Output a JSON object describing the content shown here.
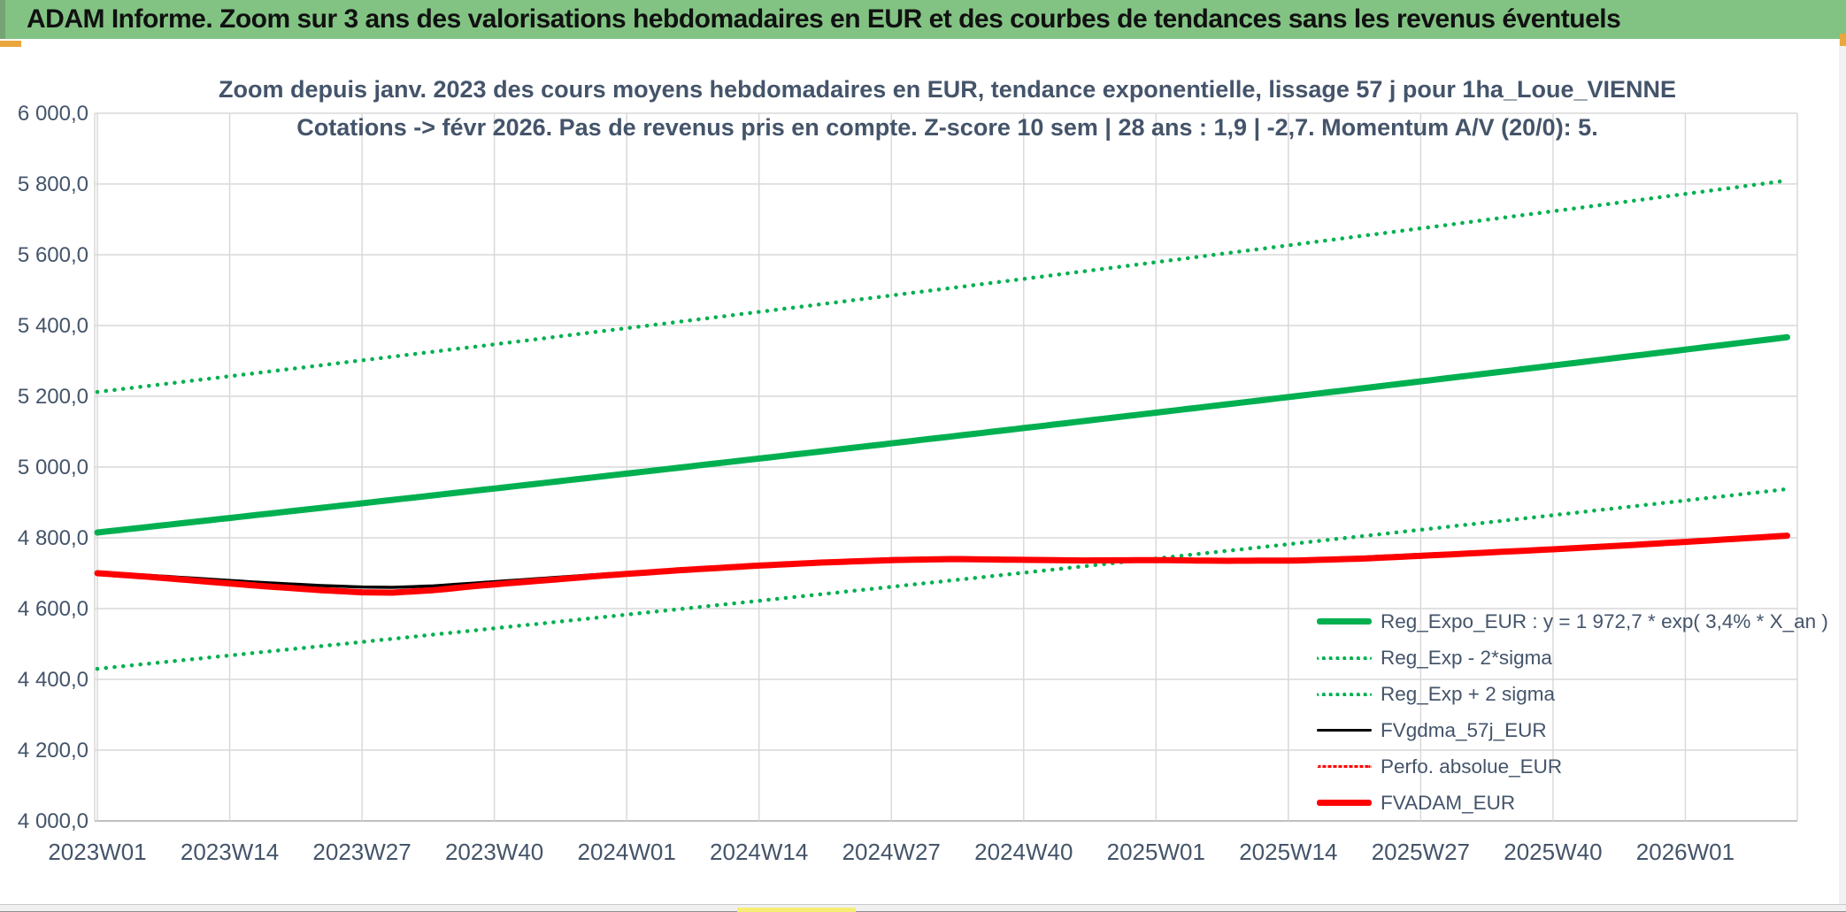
{
  "header": {
    "title": "ADAM Informe. Zoom sur 3 ans des valorisations hebdomadaires en EUR et des courbes de tendances sans les revenus éventuels"
  },
  "chart_data": {
    "type": "line",
    "title_line1": "Zoom depuis janv. 2023 des cours moyens hebdomadaires en EUR, tendance exponentielle, lissage 57 j pour 1ha_Loue_VIENNE",
    "title_line2": "Cotations -> févr 2026. Pas de revenus pris en compte. Z-score 10 sem | 28 ans : 1,9 | -2,7. Momentum A/V (20/0): 5.",
    "x_axis": {
      "tick_labels": [
        "2023W01",
        "2023W14",
        "2023W27",
        "2023W40",
        "2024W01",
        "2024W14",
        "2024W27",
        "2024W40",
        "2025W01",
        "2025W14",
        "2025W27",
        "2025W40",
        "2026W01"
      ],
      "tick_week_interval": 13,
      "weeks_last": 166,
      "weeks_right_edge": 167
    },
    "y_axis": {
      "min": 4000,
      "max": 6000,
      "ticks": [
        {
          "value": 6000,
          "label": "6 000,0"
        },
        {
          "value": 5800,
          "label": "5 800,0"
        },
        {
          "value": 5600,
          "label": "5 600,0"
        },
        {
          "value": 5400,
          "label": "5 400,0"
        },
        {
          "value": 5200,
          "label": "5 200,0"
        },
        {
          "value": 5000,
          "label": "5 000,0"
        },
        {
          "value": 4800,
          "label": "4 800,0"
        },
        {
          "value": 4600,
          "label": "4 600,0"
        },
        {
          "value": 4400,
          "label": "4 400,0"
        },
        {
          "value": 4200,
          "label": "4 200,0"
        },
        {
          "value": 4000,
          "label": "4 000,0"
        }
      ]
    },
    "grid": true,
    "legend_position": "inside-right-bottom",
    "series": [
      {
        "name": "Reg_Expo_EUR : y = 1 972,7 * exp( 3,4% *  X_an )",
        "color": "#00B050",
        "style": "solid",
        "width": 7,
        "z": 3,
        "model": "exp",
        "base_eur": 4815,
        "annual_rate": 0.034,
        "band_factor": 1
      },
      {
        "name": "Reg_Exp - 2*sigma",
        "color": "#00B050",
        "style": "dot",
        "width": 4.5,
        "z": 1,
        "model": "exp",
        "base_eur": 4815,
        "annual_rate": 0.034,
        "band_factor": 0.92
      },
      {
        "name": "Reg_Exp + 2 sigma",
        "color": "#00B050",
        "style": "dot",
        "width": 4.5,
        "z": 2,
        "model": "exp",
        "base_eur": 4815,
        "annual_rate": 0.034,
        "band_factor": 1.0825
      },
      {
        "name": "FVgdma_57j_EUR",
        "color": "#000000",
        "style": "solid",
        "width": 3.5,
        "z": 4,
        "keypoints": [
          [
            0,
            4701
          ],
          [
            5,
            4694
          ],
          [
            10,
            4685
          ],
          [
            16,
            4674
          ],
          [
            22,
            4665
          ],
          [
            26,
            4661
          ],
          [
            29,
            4660
          ],
          [
            33,
            4664
          ],
          [
            38,
            4674
          ],
          [
            44,
            4686
          ],
          [
            50,
            4698
          ],
          [
            57,
            4710
          ],
          [
            64,
            4722
          ],
          [
            71,
            4733
          ],
          [
            78,
            4741
          ],
          [
            84,
            4744
          ],
          [
            90,
            4742
          ],
          [
            97,
            4739
          ],
          [
            104,
            4738
          ],
          [
            111,
            4737
          ],
          [
            118,
            4739
          ],
          [
            124,
            4745
          ],
          [
            130,
            4753
          ],
          [
            137,
            4762
          ],
          [
            144,
            4771
          ],
          [
            151,
            4781
          ],
          [
            158,
            4791
          ],
          [
            162,
            4797
          ],
          [
            166,
            4803
          ]
        ]
      },
      {
        "name": "Perfo. absolue_EUR",
        "color": "#FF0000",
        "style": "dot",
        "width": 3,
        "z": 5,
        "keypoints": [
          [
            0,
            4700
          ],
          [
            5,
            4690
          ],
          [
            10,
            4678
          ],
          [
            16,
            4664
          ],
          [
            22,
            4652
          ],
          [
            26,
            4646
          ],
          [
            29,
            4645
          ],
          [
            33,
            4652
          ],
          [
            38,
            4666
          ],
          [
            44,
            4680
          ],
          [
            50,
            4694
          ],
          [
            57,
            4708
          ],
          [
            64,
            4720
          ],
          [
            71,
            4730
          ],
          [
            78,
            4737
          ],
          [
            84,
            4740
          ],
          [
            90,
            4738
          ],
          [
            97,
            4736
          ],
          [
            104,
            4737
          ],
          [
            111,
            4735
          ],
          [
            118,
            4736
          ],
          [
            124,
            4741
          ],
          [
            130,
            4749
          ],
          [
            137,
            4759
          ],
          [
            144,
            4769
          ],
          [
            151,
            4780
          ],
          [
            158,
            4792
          ],
          [
            162,
            4799
          ],
          [
            166,
            4806
          ]
        ]
      },
      {
        "name": "FVADAM_EUR",
        "color": "#FF0000",
        "style": "solid",
        "width": 7,
        "z": 6,
        "keypoints": [
          [
            0,
            4700
          ],
          [
            5,
            4690
          ],
          [
            10,
            4678
          ],
          [
            16,
            4664
          ],
          [
            22,
            4652
          ],
          [
            26,
            4646
          ],
          [
            29,
            4645
          ],
          [
            33,
            4652
          ],
          [
            38,
            4666
          ],
          [
            44,
            4680
          ],
          [
            50,
            4694
          ],
          [
            57,
            4708
          ],
          [
            64,
            4720
          ],
          [
            71,
            4730
          ],
          [
            78,
            4737
          ],
          [
            84,
            4740
          ],
          [
            90,
            4738
          ],
          [
            97,
            4736
          ],
          [
            104,
            4737
          ],
          [
            111,
            4735
          ],
          [
            118,
            4736
          ],
          [
            124,
            4741
          ],
          [
            130,
            4749
          ],
          [
            137,
            4759
          ],
          [
            144,
            4769
          ],
          [
            151,
            4780
          ],
          [
            158,
            4792
          ],
          [
            162,
            4799
          ],
          [
            166,
            4806
          ]
        ]
      }
    ],
    "colors": {
      "grid": "#d9d9d9",
      "axis_line": "#bfbfbf",
      "axis_text": "#44546A",
      "title_text": "#44546A"
    }
  },
  "decor": {
    "header_bg": "#82c383",
    "gold": "#e9a63c",
    "yellow": "#f6ee72"
  }
}
